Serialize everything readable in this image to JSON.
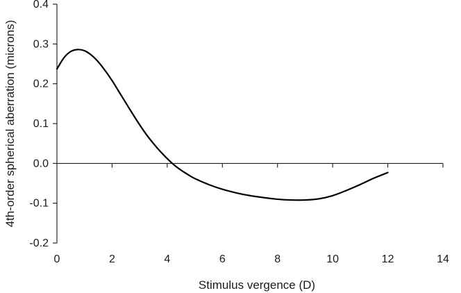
{
  "chart_data": {
    "type": "line",
    "title": "",
    "xlabel": "Stimulus vergence (D)",
    "ylabel": "4th-order spherical aberration (microns)",
    "xlim": [
      0,
      14
    ],
    "ylim": [
      -0.2,
      0.4
    ],
    "x_ticks": [
      0,
      2,
      4,
      6,
      8,
      10,
      12,
      14
    ],
    "y_ticks": [
      0.4,
      0.3,
      0.2,
      0.1,
      0.0,
      -0.1,
      -0.2
    ],
    "x_tick_labels": [
      "0",
      "2",
      "4",
      "6",
      "8",
      "10",
      "12",
      "14"
    ],
    "y_tick_labels": [
      "0.4",
      "0.3",
      "0.2",
      "0.1",
      "0.0",
      "-0.1",
      "-0.2"
    ],
    "grid": false,
    "series": [
      {
        "color": "#000000",
        "x": [
          0,
          0.25,
          0.5,
          0.75,
          1.0,
          1.25,
          1.5,
          1.75,
          2.0,
          2.25,
          2.5,
          2.75,
          3.0,
          3.25,
          3.5,
          3.75,
          4.0,
          4.25,
          4.5,
          4.75,
          5.0,
          5.5,
          6.0,
          6.5,
          7.0,
          7.5,
          8.0,
          8.5,
          9.0,
          9.5,
          10.0,
          10.5,
          11.0,
          11.5,
          12.0
        ],
        "y": [
          0.237,
          0.265,
          0.281,
          0.286,
          0.283,
          0.272,
          0.255,
          0.233,
          0.208,
          0.18,
          0.152,
          0.124,
          0.097,
          0.072,
          0.05,
          0.03,
          0.012,
          -0.004,
          -0.017,
          -0.028,
          -0.038,
          -0.053,
          -0.065,
          -0.074,
          -0.081,
          -0.086,
          -0.09,
          -0.092,
          -0.092,
          -0.089,
          -0.081,
          -0.068,
          -0.053,
          -0.037,
          -0.023
        ]
      }
    ]
  }
}
